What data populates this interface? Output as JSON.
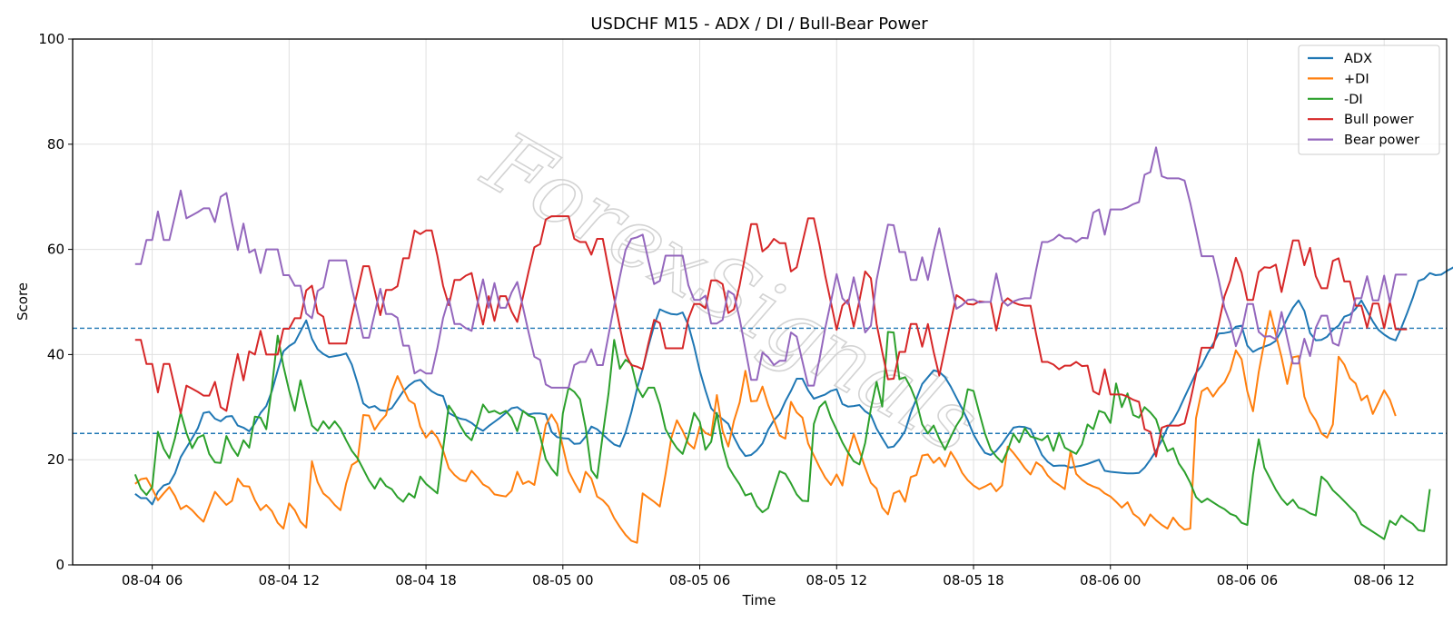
{
  "chart_data": {
    "type": "line",
    "title": "USDCHF M15 - ADX / DI / Bull-Bear Power",
    "xlabel": "Time",
    "ylabel": "Score",
    "ylim": [
      0,
      100
    ],
    "yticks": [
      0,
      20,
      40,
      60,
      80,
      100
    ],
    "x_start": "2025-08-04 05:15",
    "x_end": "2025-08-06 12:00",
    "x_step_minutes": 15,
    "xticks": [
      "08-04 06",
      "08-04 12",
      "08-04 18",
      "08-05 00",
      "08-05 06",
      "08-05 12",
      "08-05 18",
      "08-06 00",
      "08-06 06",
      "08-06 12"
    ],
    "hlines": [
      25,
      45
    ],
    "grid": true,
    "legend_position": "top-right",
    "watermark": "ForexSignals",
    "series": [
      {
        "name": "ADX",
        "color": "#1f77b4",
        "values": [
          13.5,
          12.7,
          12.7,
          11.5,
          13.9,
          15.1,
          15.5,
          17.4,
          20.5,
          22.3,
          24.1,
          26.0,
          28.9,
          29.1,
          27.8,
          27.3,
          28.2,
          28.3,
          26.5,
          26.1,
          25.4,
          26.9,
          28.9,
          30.2,
          33.1,
          37.0,
          40.6,
          41.6,
          42.3,
          44.4,
          46.5,
          43.0,
          41.0,
          40.1,
          39.5,
          39.7,
          39.9,
          40.2,
          38.1,
          34.6,
          30.7,
          29.9,
          30.2,
          29.4,
          29.3,
          29.8,
          31.4,
          33.0,
          34.1,
          34.9,
          35.2,
          34.0,
          33.0,
          32.4,
          32.1,
          28.9,
          28.3,
          27.8,
          27.6,
          27.0,
          26.1,
          25.5,
          26.4,
          27.2,
          28.0,
          28.9,
          29.8,
          30.0,
          29.2,
          28.6,
          28.8,
          28.8,
          28.6,
          25.3,
          24.3,
          24.1,
          24.0,
          23.0,
          23.1,
          24.4,
          26.3,
          25.8,
          24.8,
          23.8,
          22.9,
          22.5,
          25.2,
          29.0,
          33.5,
          37.3,
          41.6,
          45.5,
          48.6,
          48.1,
          47.7,
          47.6,
          48.0,
          45.6,
          41.6,
          36.9,
          33.2,
          29.8,
          28.6,
          27.7,
          26.8,
          24.3,
          22.2,
          20.7,
          20.9,
          21.8,
          23.1,
          25.7,
          27.5,
          28.7,
          31.1,
          33.1,
          35.4,
          35.4,
          33.2,
          31.6,
          32.0,
          32.4,
          33.1,
          33.4,
          30.6,
          30.1,
          30.2,
          30.4,
          29.2,
          28.5,
          25.9,
          24.1,
          22.3,
          22.5,
          23.8,
          25.5,
          28.9,
          31.6,
          34.4,
          35.7,
          37.0,
          36.7,
          35.7,
          33.9,
          31.8,
          29.7,
          27.5,
          24.8,
          22.9,
          21.3,
          20.9,
          21.7,
          23.0,
          24.6,
          26.1,
          26.3,
          26.2,
          25.8,
          23.3,
          20.9,
          19.6,
          18.8,
          18.9,
          18.9,
          18.5,
          18.7,
          18.9,
          19.2,
          19.6,
          20.0,
          17.9,
          17.7,
          17.6,
          17.5,
          17.4,
          17.4,
          17.5,
          18.5,
          20.0,
          21.7,
          23.7,
          26.1,
          27.5,
          29.5,
          31.9,
          34.2,
          36.5,
          37.9,
          40.1,
          42.0,
          44.0,
          44.1,
          44.3,
          45.3,
          45.5,
          41.7,
          40.5,
          41.1,
          41.5,
          41.9,
          42.6,
          44.6,
          46.9,
          48.9,
          50.3,
          48.3,
          44.1,
          42.7,
          42.8,
          43.4,
          44.7,
          45.5,
          47.2,
          47.6,
          48.7,
          50.3,
          48.3,
          46.3,
          44.7,
          43.8,
          43.1,
          42.7,
          45.1,
          47.8,
          50.7,
          54.0,
          54.4,
          55.5,
          55.1,
          55.2,
          55.9,
          56.5,
          57.3,
          54.7
        ]
      },
      {
        "name": "+DI",
        "color": "#ff7f0e",
        "values": [
          15.4,
          16.3,
          16.5,
          14.5,
          12.3,
          13.6,
          14.8,
          13.1,
          10.6,
          11.3,
          10.4,
          9.2,
          8.2,
          11.1,
          13.9,
          12.6,
          11.4,
          12.2,
          16.4,
          15.0,
          14.9,
          12.3,
          10.4,
          11.4,
          10.2,
          8.0,
          6.9,
          11.7,
          10.4,
          8.2,
          7.1,
          19.7,
          15.7,
          13.6,
          12.7,
          11.4,
          10.4,
          15.5,
          19.0,
          19.7,
          28.5,
          28.4,
          25.7,
          27.3,
          28.5,
          33.1,
          35.9,
          33.5,
          31.3,
          30.6,
          26.3,
          24.2,
          25.5,
          24.2,
          21.8,
          18.4,
          17.1,
          16.2,
          15.9,
          17.9,
          16.7,
          15.3,
          14.7,
          13.4,
          13.2,
          13.0,
          14.1,
          17.7,
          15.4,
          15.9,
          15.2,
          20.8,
          26.6,
          28.6,
          26.8,
          22.5,
          17.8,
          15.7,
          13.8,
          17.7,
          16.4,
          13.0,
          12.3,
          11.1,
          8.9,
          7.2,
          5.7,
          4.6,
          4.2,
          13.6,
          12.8,
          12.0,
          11.1,
          17.3,
          24.1,
          27.5,
          25.5,
          23.1,
          22.1,
          26.3,
          25.1,
          24.6,
          32.3,
          25.5,
          22.5,
          27.4,
          30.9,
          36.9,
          31.1,
          31.2,
          33.9,
          30.4,
          27.6,
          24.6,
          24.0,
          31.0,
          29.0,
          28.0,
          23.1,
          20.8,
          18.6,
          16.6,
          15.2,
          17.2,
          15.1,
          21.0,
          24.9,
          21.7,
          18.5,
          15.6,
          14.5,
          10.9,
          9.6,
          13.6,
          14.1,
          12.0,
          16.7,
          17.1,
          20.8,
          21.0,
          19.4,
          20.4,
          18.7,
          21.5,
          19.8,
          17.5,
          16.1,
          15.1,
          14.4,
          14.9,
          15.5,
          14.0,
          15.1,
          22.5,
          21.3,
          19.9,
          18.4,
          17.2,
          19.5,
          18.7,
          17.0,
          15.9,
          15.2,
          14.4,
          21.6,
          17.3,
          16.2,
          15.4,
          14.9,
          14.5,
          13.6,
          13.0,
          12.0,
          10.9,
          11.9,
          9.7,
          8.9,
          7.5,
          9.6,
          8.5,
          7.6,
          6.9,
          9.0,
          7.6,
          6.7,
          6.9,
          27.9,
          33.0,
          33.7,
          32.0,
          33.6,
          34.7,
          37.0,
          40.8,
          39.1,
          33.0,
          29.2,
          36.7,
          42.4,
          48.3,
          43.8,
          39.5,
          34.4,
          39.5,
          39.7,
          32.0,
          29.1,
          27.5,
          25.0,
          24.2,
          26.7,
          39.6,
          38.1,
          35.5,
          34.5,
          31.3,
          32.2,
          28.7,
          30.9,
          33.2,
          31.4,
          28.3
        ]
      },
      {
        "name": "-DI",
        "color": "#2ca02c",
        "values": [
          17.2,
          14.5,
          13.3,
          14.8,
          25.3,
          22.1,
          20.3,
          24.1,
          29.0,
          25.1,
          22.2,
          24.2,
          24.7,
          21.1,
          19.5,
          19.4,
          24.5,
          22.3,
          20.7,
          23.7,
          22.3,
          28.2,
          28.0,
          25.8,
          33.9,
          43.6,
          37.8,
          33.2,
          29.3,
          35.1,
          30.7,
          26.5,
          25.5,
          27.3,
          25.9,
          27.3,
          25.9,
          23.7,
          21.7,
          20.3,
          18.2,
          16.1,
          14.5,
          16.5,
          15.0,
          14.4,
          12.9,
          12.0,
          13.6,
          12.8,
          16.8,
          15.4,
          14.5,
          13.6,
          22.0,
          30.3,
          28.7,
          26.5,
          24.7,
          23.7,
          26.8,
          30.5,
          29.0,
          29.3,
          28.7,
          29.3,
          28.0,
          25.4,
          29.3,
          28.4,
          28.0,
          24.5,
          20.1,
          18.3,
          17.0,
          28.8,
          33.7,
          32.9,
          31.5,
          26.1,
          18.0,
          16.5,
          24.8,
          32.6,
          42.8,
          37.3,
          39.0,
          38.2,
          33.8,
          31.9,
          33.7,
          33.7,
          30.5,
          25.8,
          23.8,
          22.2,
          21.1,
          24.4,
          28.9,
          27.2,
          21.9,
          23.4,
          28.9,
          22.6,
          18.7,
          16.9,
          15.3,
          13.2,
          13.6,
          11.2,
          10.0,
          10.8,
          14.4,
          17.8,
          17.3,
          15.5,
          13.4,
          12.2,
          12.1,
          26.8,
          30.0,
          31.1,
          28.0,
          25.7,
          23.3,
          21.4,
          19.7,
          19.1,
          23.2,
          29.7,
          34.8,
          30.1,
          44.3,
          44.2,
          35.3,
          35.7,
          33.7,
          31.0,
          26.7,
          25.0,
          26.5,
          24.0,
          21.9,
          24.3,
          26.5,
          28.2,
          33.4,
          33.1,
          29.0,
          25.0,
          22.0,
          20.6,
          19.5,
          21.8,
          24.9,
          23.3,
          26.0,
          24.4,
          24.1,
          23.7,
          24.6,
          21.7,
          25.1,
          22.3,
          21.7,
          21.1,
          22.9,
          26.7,
          25.8,
          29.3,
          28.9,
          27.0,
          34.5,
          30.0,
          32.6,
          28.5,
          28.0,
          30.0,
          29.0,
          27.7,
          24.3,
          21.6,
          22.2,
          19.3,
          17.7,
          15.6,
          12.9,
          11.9,
          12.6,
          11.9,
          11.2,
          10.6,
          9.7,
          9.3,
          8.0,
          7.6,
          17.2,
          23.9,
          18.5,
          16.4,
          14.3,
          12.6,
          11.4,
          12.4,
          10.9,
          10.5,
          9.8,
          9.4,
          16.8,
          15.8,
          14.2,
          13.2,
          12.1,
          11.0,
          9.9,
          7.7,
          7.0,
          6.3,
          5.6,
          4.9,
          8.4,
          7.6,
          9.4,
          8.5,
          7.8,
          6.6,
          6.4,
          14.4
        ]
      },
      {
        "name": "Bull power",
        "color": "#d62728",
        "values": [
          42.8,
          42.8,
          38.2,
          38.2,
          32.8,
          38.2,
          38.2,
          33.6,
          28.8,
          34.1,
          33.5,
          32.9,
          32.2,
          32.2,
          34.8,
          30.0,
          29.3,
          34.9,
          40.1,
          35.1,
          40.6,
          40.0,
          44.5,
          40.0,
          40.0,
          40.0,
          44.9,
          44.9,
          46.9,
          46.9,
          52.2,
          53.1,
          47.9,
          47.2,
          42.1,
          42.1,
          42.1,
          42.1,
          47.3,
          52.0,
          56.8,
          56.8,
          52.2,
          47.5,
          52.3,
          52.3,
          53.0,
          58.3,
          58.3,
          63.6,
          62.9,
          63.6,
          63.6,
          58.8,
          53.1,
          49.4,
          54.2,
          54.2,
          55.0,
          55.5,
          50.4,
          45.7,
          51.1,
          46.4,
          51.1,
          51.1,
          48.2,
          46.2,
          51.0,
          55.8,
          60.4,
          61.0,
          65.7,
          66.3,
          66.3,
          66.3,
          66.3,
          62.0,
          61.4,
          61.4,
          59.0,
          62.0,
          62.0,
          56.3,
          50.7,
          45.2,
          40.1,
          38.0,
          37.7,
          37.2,
          42.1,
          46.6,
          46.0,
          41.2,
          41.2,
          41.2,
          41.2,
          46.8,
          49.6,
          49.6,
          48.8,
          54.1,
          54.1,
          53.4,
          47.9,
          48.6,
          53.2,
          59.0,
          64.8,
          64.8,
          59.6,
          60.5,
          62.0,
          61.2,
          61.2,
          55.8,
          56.6,
          61.3,
          65.9,
          65.9,
          60.9,
          55.0,
          49.9,
          44.7,
          49.3,
          50.4,
          45.3,
          50.3,
          55.8,
          54.5,
          45.8,
          40.5,
          35.3,
          35.4,
          40.5,
          40.5,
          45.8,
          45.8,
          41.5,
          45.8,
          40.5,
          36.0,
          41.1,
          46.3,
          51.3,
          50.6,
          49.6,
          49.5,
          50.1,
          50.0,
          50.0,
          44.6,
          49.7,
          50.7,
          49.9,
          49.5,
          49.3,
          49.3,
          43.8,
          38.6,
          38.6,
          38.1,
          37.2,
          37.9,
          37.9,
          38.6,
          37.8,
          37.9,
          33.0,
          32.4,
          37.2,
          32.4,
          32.4,
          32.4,
          32.0,
          31.4,
          31.0,
          25.8,
          25.3,
          20.6,
          26.1,
          26.5,
          26.5,
          26.5,
          26.9,
          31.2,
          36.2,
          41.3,
          41.3,
          41.3,
          45.9,
          51.1,
          54.1,
          58.4,
          55.6,
          50.4,
          50.4,
          55.7,
          56.6,
          56.5,
          57.1,
          51.9,
          56.9,
          61.7,
          61.7,
          57.0,
          60.3,
          54.9,
          52.6,
          52.6,
          57.8,
          58.3,
          53.9,
          53.9,
          49.3,
          49.3,
          45.1,
          49.7,
          49.7,
          45.0,
          50.1,
          44.8,
          44.8,
          44.8
        ]
      },
      {
        "name": "Bear power",
        "color": "#9467bd",
        "values": [
          57.2,
          57.2,
          61.8,
          61.8,
          67.2,
          61.8,
          61.8,
          66.4,
          71.2,
          65.9,
          66.5,
          67.1,
          67.8,
          67.8,
          65.2,
          70.0,
          70.7,
          65.1,
          59.9,
          64.9,
          59.4,
          60.0,
          55.5,
          60.0,
          60.0,
          60.0,
          55.1,
          55.1,
          53.1,
          53.1,
          47.8,
          46.9,
          52.1,
          52.8,
          57.9,
          57.9,
          57.9,
          57.9,
          52.7,
          48.0,
          43.2,
          43.2,
          47.8,
          52.5,
          47.7,
          47.7,
          47.0,
          41.7,
          41.7,
          36.4,
          37.1,
          36.4,
          36.4,
          41.2,
          46.9,
          50.6,
          45.8,
          45.8,
          45.0,
          44.5,
          49.6,
          54.3,
          48.9,
          53.6,
          48.9,
          48.9,
          51.8,
          53.8,
          49.0,
          44.2,
          39.6,
          39.0,
          34.3,
          33.7,
          33.7,
          33.7,
          33.7,
          38.0,
          38.6,
          38.6,
          41.0,
          38.0,
          38.0,
          43.7,
          49.3,
          54.8,
          59.9,
          62.0,
          62.3,
          62.8,
          57.9,
          53.4,
          54.0,
          58.8,
          58.8,
          58.8,
          58.8,
          53.2,
          50.4,
          50.4,
          51.2,
          45.9,
          45.9,
          46.6,
          52.1,
          51.4,
          46.8,
          41.0,
          35.2,
          35.2,
          40.4,
          39.5,
          38.0,
          38.8,
          38.8,
          44.2,
          43.4,
          38.7,
          34.1,
          34.1,
          39.1,
          45.0,
          50.1,
          55.3,
          50.7,
          49.6,
          54.7,
          49.7,
          44.2,
          45.5,
          54.2,
          59.5,
          64.7,
          64.6,
          59.5,
          59.5,
          54.2,
          54.2,
          58.5,
          54.2,
          59.5,
          64.0,
          58.9,
          53.7,
          48.7,
          49.4,
          50.4,
          50.5,
          49.9,
          50.0,
          50.0,
          55.4,
          50.3,
          49.3,
          50.1,
          50.5,
          50.7,
          50.7,
          56.2,
          61.4,
          61.4,
          61.9,
          62.8,
          62.1,
          62.1,
          61.4,
          62.2,
          62.1,
          67.0,
          67.6,
          62.8,
          67.6,
          67.6,
          67.6,
          68.0,
          68.6,
          69.0,
          74.2,
          74.7,
          79.4,
          73.9,
          73.5,
          73.5,
          73.5,
          73.1,
          68.8,
          63.8,
          58.7,
          58.7,
          58.7,
          54.1,
          48.9,
          45.9,
          41.6,
          44.4,
          49.6,
          49.6,
          44.3,
          43.4,
          43.5,
          42.9,
          48.1,
          43.1,
          38.3,
          38.3,
          43.0,
          39.7,
          45.1,
          47.4,
          47.4,
          42.2,
          41.7,
          46.1,
          46.1,
          50.7,
          50.7,
          54.9,
          50.3,
          50.3,
          55.0,
          49.9,
          55.2,
          55.2,
          55.2
        ]
      }
    ]
  }
}
